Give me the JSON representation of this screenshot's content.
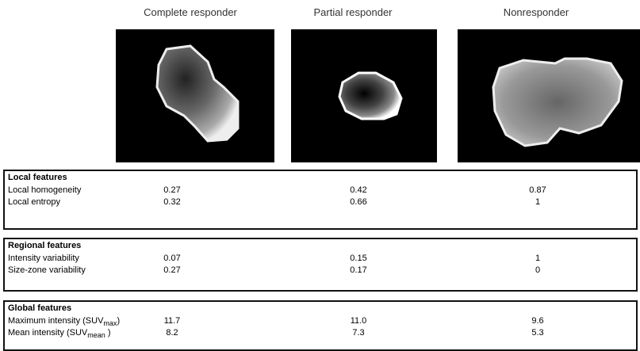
{
  "columns": [
    "Complete responder",
    "Partial responder",
    "Nonresponder"
  ],
  "sections": [
    {
      "title": "Local features",
      "rows": [
        {
          "label": [
            "Local homogeneity"
          ],
          "values": [
            "0.27",
            "0.42",
            "0.87"
          ]
        },
        {
          "label": [
            "Local entropy"
          ],
          "values": [
            "0.32",
            "0.66",
            "1"
          ]
        }
      ]
    },
    {
      "title": "Regional features",
      "rows": [
        {
          "label": [
            "Intensity variability"
          ],
          "values": [
            "0.07",
            "0.15",
            "1"
          ]
        },
        {
          "label": [
            "Size-zone variability"
          ],
          "values": [
            "0.27",
            "0.17",
            "0"
          ]
        }
      ]
    },
    {
      "title": "Global features",
      "rows": [
        {
          "label": [
            "Maximum intensity (SUV",
            "max",
            ")"
          ],
          "values": [
            "11.7",
            "11.0",
            "9.6"
          ]
        },
        {
          "label": [
            "Mean intensity (SUV",
            "mean",
            " )"
          ],
          "values": [
            "8.2",
            "7.3",
            "5.3"
          ]
        }
      ]
    }
  ]
}
